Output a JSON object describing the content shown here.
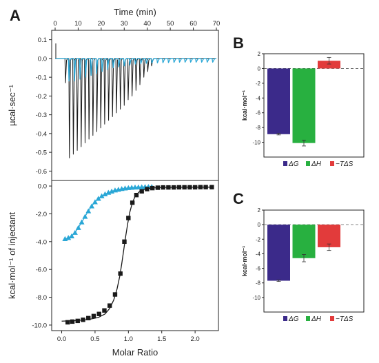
{
  "panels": {
    "a": "A",
    "b": "B",
    "c": "C"
  },
  "colors": {
    "blue_series": "#2aa7d6",
    "black_series": "#1a1a1a",
    "dG": "#3b2a8a",
    "dH": "#28b040",
    "TdS": "#e23b3b"
  },
  "chart_data": [
    {
      "id": "A-top",
      "type": "line",
      "title": "",
      "xlabel": "Time (min)",
      "ylabel": "µcal·sec⁻¹",
      "xlim": [
        0,
        70
      ],
      "ylim": [
        -0.65,
        0.15
      ],
      "xticks": [
        "0",
        "10",
        "20",
        "30",
        "40",
        "50",
        "60",
        "70"
      ],
      "yticks": [
        "0.1",
        "0.0",
        "-0.1",
        "-0.2",
        "-0.3",
        "-0.4",
        "-0.5",
        "-0.6"
      ],
      "series": [
        {
          "color": "#1a1a1a",
          "peak_times": [
            4.5,
            6.2,
            7.9,
            9.6,
            11.3,
            13.0,
            14.7,
            16.4,
            18.1,
            19.8,
            21.5,
            23.2,
            24.9,
            26.6,
            28.3,
            30.0,
            31.7,
            33.4,
            35.1,
            36.8,
            38.5,
            40.2,
            41.9
          ],
          "peak_values": [
            -0.13,
            -0.53,
            -0.51,
            -0.49,
            -0.47,
            -0.45,
            -0.43,
            -0.41,
            -0.39,
            -0.37,
            -0.35,
            -0.33,
            -0.31,
            -0.29,
            -0.27,
            -0.25,
            -0.22,
            -0.2,
            -0.17,
            -0.14,
            -0.1,
            -0.07,
            -0.04
          ]
        },
        {
          "color": "#2aa7d6",
          "peak_times": [
            6.0,
            8.4,
            10.8,
            13.2,
            15.6,
            18.0,
            20.4,
            22.8,
            25.2,
            27.6,
            30.0,
            32.4,
            34.8,
            37.2,
            39.6,
            42.0,
            44.4,
            46.8,
            49.2,
            51.6,
            54.0,
            56.4,
            58.8,
            61.2,
            63.6,
            66.0,
            68.4
          ],
          "peak_values": [
            -0.12,
            -0.12,
            -0.11,
            -0.1,
            -0.09,
            -0.08,
            -0.07,
            -0.06,
            -0.05,
            -0.045,
            -0.04,
            -0.035,
            -0.03,
            -0.028,
            -0.026,
            -0.025,
            -0.024,
            -0.023,
            -0.022,
            -0.021,
            -0.02,
            -0.02,
            -0.02,
            -0.02,
            -0.02,
            -0.02,
            -0.02
          ]
        }
      ]
    },
    {
      "id": "A-bottom",
      "type": "scatter",
      "title": "",
      "xlabel": "Molar Ratio",
      "ylabel": "kcal·mol⁻¹ of injectant",
      "xlim": [
        -0.15,
        2.35
      ],
      "ylim": [
        -10.4,
        0.4
      ],
      "xticks": [
        "0.0",
        "0.5",
        "1.0",
        "1.5",
        "2.0"
      ],
      "yticks": [
        "0.0",
        "-2.0",
        "-4.0",
        "-6.0",
        "-8.0",
        "-10.0"
      ],
      "series": [
        {
          "color": "#2aa7d6",
          "marker": "triangle",
          "x": [
            0.05,
            0.1,
            0.15,
            0.2,
            0.25,
            0.3,
            0.35,
            0.4,
            0.45,
            0.5,
            0.55,
            0.6,
            0.65,
            0.7,
            0.75,
            0.8,
            0.85,
            0.9,
            0.95,
            1.0,
            1.05,
            1.1,
            1.15,
            1.2,
            1.25,
            1.3,
            1.35
          ],
          "y": [
            -3.8,
            -3.72,
            -3.6,
            -3.35,
            -3.0,
            -2.6,
            -2.2,
            -1.8,
            -1.45,
            -1.15,
            -0.9,
            -0.72,
            -0.58,
            -0.47,
            -0.38,
            -0.3,
            -0.25,
            -0.2,
            -0.16,
            -0.13,
            -0.11,
            -0.09,
            -0.08,
            -0.07,
            -0.06,
            -0.05,
            -0.05
          ]
        },
        {
          "color": "#1a1a1a",
          "marker": "square",
          "x": [
            0.09,
            0.16,
            0.24,
            0.32,
            0.4,
            0.48,
            0.56,
            0.64,
            0.72,
            0.8,
            0.88,
            0.94,
            1.0,
            1.06,
            1.12,
            1.2,
            1.28,
            1.36,
            1.44,
            1.52,
            1.6,
            1.68,
            1.76,
            1.84,
            1.92,
            2.0,
            2.08,
            2.16,
            2.25
          ],
          "y": [
            -9.8,
            -9.75,
            -9.7,
            -9.62,
            -9.5,
            -9.35,
            -9.2,
            -8.95,
            -8.6,
            -7.8,
            -6.3,
            -4.0,
            -2.3,
            -1.2,
            -0.65,
            -0.38,
            -0.22,
            -0.15,
            -0.12,
            -0.1,
            -0.1,
            -0.1,
            -0.09,
            -0.09,
            -0.09,
            -0.09,
            -0.08,
            -0.08,
            -0.08
          ],
          "fit_x": [
            0.0,
            0.2,
            0.4,
            0.55,
            0.65,
            0.72,
            0.78,
            0.83,
            0.87,
            0.9,
            0.93,
            0.96,
            0.99,
            1.02,
            1.06,
            1.1,
            1.16,
            1.24,
            1.35,
            1.5,
            1.8,
            2.25
          ],
          "fit_y": [
            -9.72,
            -9.68,
            -9.6,
            -9.45,
            -9.2,
            -8.8,
            -8.2,
            -7.4,
            -6.5,
            -5.6,
            -4.6,
            -3.6,
            -2.7,
            -1.9,
            -1.2,
            -0.75,
            -0.42,
            -0.24,
            -0.14,
            -0.1,
            -0.09,
            -0.08
          ]
        }
      ]
    },
    {
      "id": "B",
      "type": "bar",
      "title": "",
      "xlabel": "",
      "ylabel": "kcal·mol⁻¹",
      "ylim": [
        -12,
        2
      ],
      "yticks": [
        "2",
        "0",
        "-2",
        "-4",
        "-6",
        "-8",
        "-10"
      ],
      "categories": [
        "ΔG",
        "ΔH",
        "−TΔS"
      ],
      "values": [
        -8.9,
        -10.1,
        1.05
      ],
      "errors": [
        0.1,
        0.4,
        0.45
      ],
      "colors": [
        "#3b2a8a",
        "#28b040",
        "#e23b3b"
      ],
      "legend": [
        "ΔG",
        "ΔH",
        "−TΔS"
      ]
    },
    {
      "id": "C",
      "type": "bar",
      "title": "",
      "xlabel": "",
      "ylabel": "kcal·mol⁻¹",
      "ylim": [
        -12,
        2
      ],
      "yticks": [
        "2",
        "0",
        "-2",
        "-4",
        "-6",
        "-8",
        "-10"
      ],
      "categories": [
        "ΔG",
        "ΔH",
        "−TΔS"
      ],
      "values": [
        -7.7,
        -4.6,
        -3.1
      ],
      "errors": [
        0.1,
        0.5,
        0.45
      ],
      "colors": [
        "#3b2a8a",
        "#28b040",
        "#e23b3b"
      ],
      "legend": [
        "ΔG",
        "ΔH",
        "−TΔS"
      ]
    }
  ]
}
